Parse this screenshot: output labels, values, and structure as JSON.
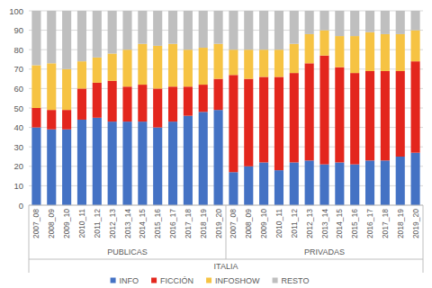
{
  "chart_data": {
    "type": "bar",
    "stacked": true,
    "grid": true,
    "legend": "bottom",
    "categories": [
      "2007_08",
      "2008_09",
      "2009_10",
      "2010_11",
      "2011_12",
      "2012_13",
      "2013_14",
      "2014_15",
      "2015_16",
      "2016_17",
      "2017_18",
      "2018_19",
      "2019_20",
      "2007_08",
      "2008_09",
      "2009_10",
      "2010_11",
      "2011_12",
      "2012_13",
      "2013_14",
      "2014_15",
      "2015_16",
      "2016_17",
      "2017_18",
      "2018_19",
      "2019_20"
    ],
    "category_groups": [
      {
        "label": "PUBLICAS",
        "count": 13
      },
      {
        "label": "PRIVADAS",
        "count": 13
      }
    ],
    "group_label": "ITALIA",
    "ylim": [
      0,
      100
    ],
    "yticks": [
      0,
      10,
      20,
      30,
      40,
      50,
      60,
      70,
      80,
      90,
      100
    ],
    "series": [
      {
        "name": "INFO",
        "color": "#4472c4",
        "values": [
          40,
          39,
          39,
          44,
          45,
          43,
          43,
          43,
          40,
          43,
          46,
          48,
          49,
          17,
          20,
          22,
          18,
          22,
          23,
          21,
          22,
          21,
          23,
          23,
          25,
          27
        ]
      },
      {
        "name": "FICCIÓN",
        "color": "#e3261d",
        "values": [
          10,
          10,
          10,
          16,
          18,
          21,
          18,
          19,
          20,
          18,
          15,
          14,
          16,
          50,
          45,
          44,
          48,
          46,
          50,
          56,
          49,
          47,
          46,
          46,
          44,
          47
        ]
      },
      {
        "name": "INFOSHOW",
        "color": "#f6c343",
        "values": [
          22,
          24,
          21,
          14,
          13,
          14,
          19,
          21,
          22,
          22,
          19,
          19,
          18,
          13,
          15,
          14,
          14,
          15,
          15,
          13,
          16,
          19,
          20,
          19,
          19,
          16
        ]
      },
      {
        "name": "RESTO",
        "color": "#bfbfbf",
        "values": [
          28,
          27,
          30,
          26,
          24,
          22,
          20,
          17,
          18,
          17,
          20,
          19,
          17,
          20,
          20,
          20,
          20,
          17,
          12,
          10,
          13,
          13,
          11,
          12,
          12,
          10
        ]
      }
    ]
  }
}
